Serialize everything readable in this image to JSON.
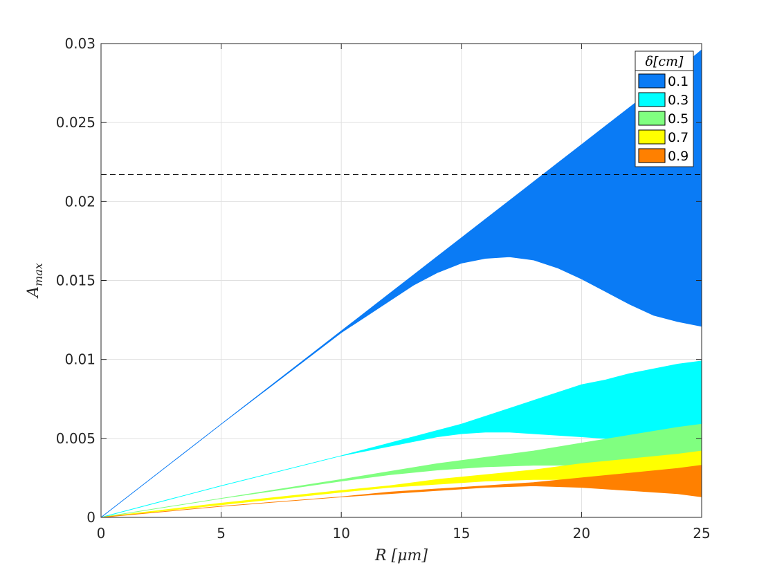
{
  "chart_data": {
    "type": "area",
    "title": "",
    "xlabel": "R [μm]",
    "ylabel": "A_max",
    "xlim": [
      0,
      25
    ],
    "ylim": [
      0,
      0.03
    ],
    "xticks": [
      "0",
      "5",
      "10",
      "15",
      "20",
      "25"
    ],
    "yticks": [
      "0",
      "0.005",
      "0.01",
      "0.015",
      "0.02",
      "0.025",
      "0.03"
    ],
    "grid": true,
    "legend_title": "δ[cm]",
    "legend_position": "top-right",
    "reference_line": {
      "y": 0.0217,
      "style": "dashed",
      "color": "#000000"
    },
    "series": [
      {
        "name": "0.1",
        "color": "#0A7BF5",
        "x": [
          0,
          5,
          10,
          11,
          12,
          13,
          14,
          15,
          16,
          17,
          18,
          19,
          20,
          21,
          22,
          23,
          24,
          25
        ],
        "upper": [
          0,
          0.0059,
          0.0118,
          0.01298,
          0.01416,
          0.01534,
          0.01652,
          0.0177,
          0.01888,
          0.02006,
          0.02124,
          0.02242,
          0.0236,
          0.02478,
          0.02596,
          0.02714,
          0.02832,
          0.0296
        ],
        "lower": [
          0,
          0.0059,
          0.0117,
          0.0127,
          0.0137,
          0.0147,
          0.0155,
          0.0161,
          0.0164,
          0.0165,
          0.0163,
          0.0158,
          0.0151,
          0.0143,
          0.0135,
          0.0128,
          0.0124,
          0.0121
        ]
      },
      {
        "name": "0.3",
        "color": "#00FFFF",
        "x": [
          0,
          5,
          10,
          11,
          12,
          13,
          14,
          15,
          16,
          17,
          18,
          19,
          20,
          21,
          22,
          23,
          24,
          25
        ],
        "upper": [
          0,
          0.002,
          0.0039,
          0.0043,
          0.0047,
          0.0051,
          0.0055,
          0.0059,
          0.0064,
          0.0069,
          0.0074,
          0.0079,
          0.0084,
          0.0087,
          0.0091,
          0.0094,
          0.0097,
          0.0099
        ],
        "lower": [
          0,
          0.002,
          0.0039,
          0.0042,
          0.0045,
          0.0048,
          0.0051,
          0.0053,
          0.0054,
          0.0054,
          0.0053,
          0.0052,
          0.0051,
          0.005,
          0.005,
          0.005,
          0.0051,
          0.0051
        ]
      },
      {
        "name": "0.5",
        "color": "#80FF80",
        "x": [
          0,
          5,
          10,
          12,
          14,
          16,
          18,
          20,
          22,
          24,
          25
        ],
        "upper": [
          0,
          0.0012,
          0.0024,
          0.0029,
          0.0034,
          0.0038,
          0.0042,
          0.0047,
          0.0052,
          0.0057,
          0.0059
        ],
        "lower": [
          0,
          0.0012,
          0.0023,
          0.0027,
          0.003,
          0.0032,
          0.0033,
          0.0033,
          0.0032,
          0.0031,
          0.0031
        ]
      },
      {
        "name": "0.7",
        "color": "#FFFF00",
        "x": [
          0,
          5,
          10,
          12,
          14,
          16,
          18,
          20,
          22,
          24,
          25
        ],
        "upper": [
          0,
          0.0009,
          0.0017,
          0.002,
          0.0024,
          0.0027,
          0.003,
          0.0034,
          0.0037,
          0.004,
          0.0042
        ],
        "lower": [
          0,
          0.0008,
          0.0016,
          0.0019,
          0.0021,
          0.0023,
          0.0024,
          0.0024,
          0.0023,
          0.0022,
          0.0021
        ]
      },
      {
        "name": "0.9",
        "color": "#FF8000",
        "x": [
          0,
          5,
          10,
          12,
          14,
          16,
          18,
          20,
          22,
          24,
          25
        ],
        "upper": [
          0,
          0.0007,
          0.0013,
          0.0016,
          0.0018,
          0.002,
          0.0022,
          0.0025,
          0.0028,
          0.0031,
          0.0033
        ],
        "lower": [
          0,
          0.0007,
          0.0013,
          0.0015,
          0.0017,
          0.0019,
          0.002,
          0.0019,
          0.0017,
          0.0015,
          0.0013
        ]
      }
    ]
  }
}
